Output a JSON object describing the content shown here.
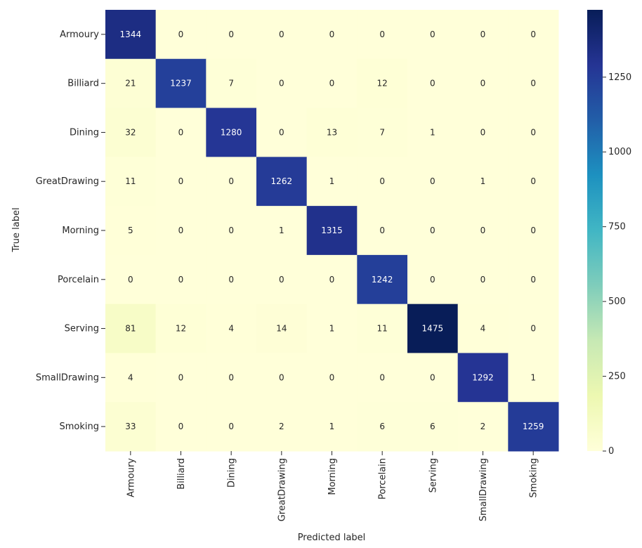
{
  "chart_data": {
    "type": "heatmap",
    "xlabel": "Predicted label",
    "ylabel": "True label",
    "x_categories": [
      "Armoury",
      "Billiard",
      "Dining",
      "GreatDrawing",
      "Morning",
      "Porcelain",
      "Serving",
      "SmallDrawing",
      "Smoking"
    ],
    "y_categories": [
      "Armoury",
      "Billiard",
      "Dining",
      "GreatDrawing",
      "Morning",
      "Porcelain",
      "Serving",
      "SmallDrawing",
      "Smoking"
    ],
    "values": [
      [
        1344,
        0,
        0,
        0,
        0,
        0,
        0,
        0,
        0
      ],
      [
        21,
        1237,
        7,
        0,
        0,
        12,
        0,
        0,
        0
      ],
      [
        32,
        0,
        1280,
        0,
        13,
        7,
        1,
        0,
        0
      ],
      [
        11,
        0,
        0,
        1262,
        1,
        0,
        0,
        1,
        0
      ],
      [
        5,
        0,
        0,
        1,
        1315,
        0,
        0,
        0,
        0
      ],
      [
        0,
        0,
        0,
        0,
        0,
        1242,
        0,
        0,
        0
      ],
      [
        81,
        12,
        4,
        14,
        1,
        11,
        1475,
        4,
        0
      ],
      [
        4,
        0,
        0,
        0,
        0,
        0,
        0,
        1292,
        1
      ],
      [
        33,
        0,
        0,
        2,
        1,
        6,
        6,
        2,
        1259
      ]
    ],
    "colormap": "YlGnBu",
    "colorbar": {
      "min": 0,
      "max": 1475,
      "ticks": [
        0,
        250,
        500,
        750,
        1000,
        1250
      ]
    },
    "annotation_colors": {
      "dark_cell_text": "#ffffff",
      "light_cell_text": "#262626"
    }
  }
}
